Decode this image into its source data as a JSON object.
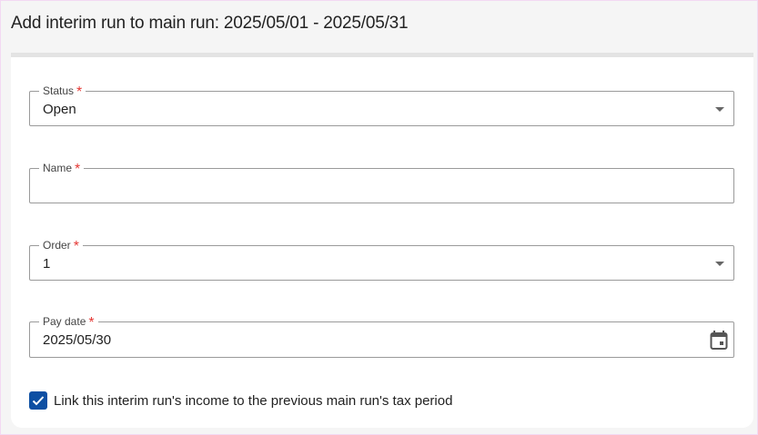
{
  "dialog": {
    "title": "Add interim run to main run: 2025/05/01 - 2025/05/31"
  },
  "fields": {
    "status": {
      "label": "Status",
      "required": "*",
      "value": "Open"
    },
    "name": {
      "label": "Name",
      "required": "*",
      "value": ""
    },
    "order": {
      "label": "Order",
      "required": "*",
      "value": "1"
    },
    "pay_date": {
      "label": "Pay date",
      "required": "*",
      "value": "2025/05/30"
    }
  },
  "link_checkbox": {
    "label": "Link this interim run's income to the previous main run's tax period",
    "checked": true
  },
  "colors": {
    "accent": "#0d4fa3",
    "required": "#e53935"
  }
}
